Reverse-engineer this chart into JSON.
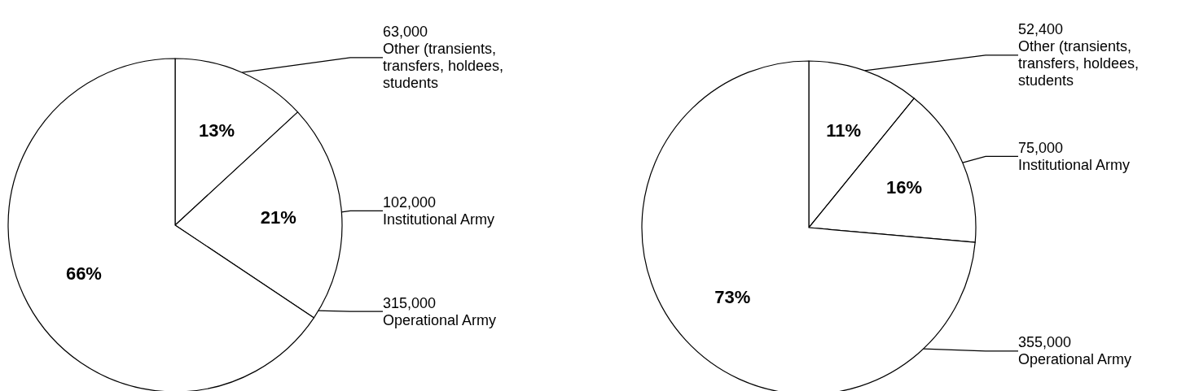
{
  "chart_data": [
    {
      "type": "pie",
      "categories": [
        "Other (transients, transfers, holdees, students",
        "Institutional Army",
        "Operational Army"
      ],
      "values": [
        63000,
        102000,
        315000
      ],
      "colors": [
        "#ffffff",
        "#ffffff",
        "#ffffff"
      ],
      "value_labels": [
        "63,000",
        "102,000",
        "315,000"
      ],
      "annotations": [
        "13%",
        "21%",
        "66%"
      ],
      "legend": false
    },
    {
      "type": "pie",
      "categories": [
        "Other (transients, transfers, holdees, students",
        "Institutional Army",
        "Operational Army"
      ],
      "values": [
        52400,
        75000,
        355000
      ],
      "colors": [
        "#ffffff",
        "#ffffff",
        "#ffffff"
      ],
      "value_labels": [
        "52,400",
        "75,000",
        "355,000"
      ],
      "annotations": [
        "11%",
        "16%",
        "73%"
      ],
      "legend": false
    }
  ]
}
